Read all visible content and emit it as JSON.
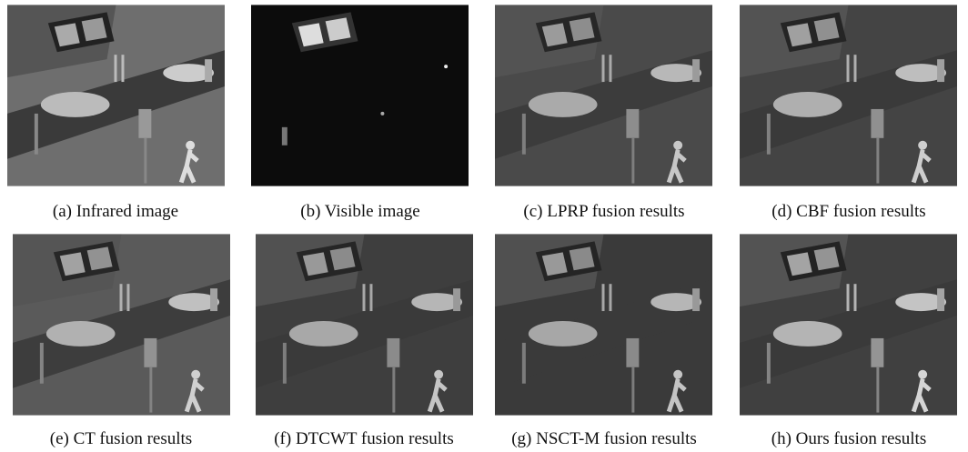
{
  "figures": [
    {
      "caption": "(a) Infrared image"
    },
    {
      "caption": "(b) Visible image"
    },
    {
      "caption": "(c) LPRP fusion results"
    },
    {
      "caption": "(d) CBF fusion results"
    },
    {
      "caption": "(e) CT fusion results"
    },
    {
      "caption": "(f) DTCWT fusion results"
    },
    {
      "caption": "(g) NSCT-M fusion results"
    },
    {
      "caption": "(h) Ours fusion results"
    }
  ]
}
